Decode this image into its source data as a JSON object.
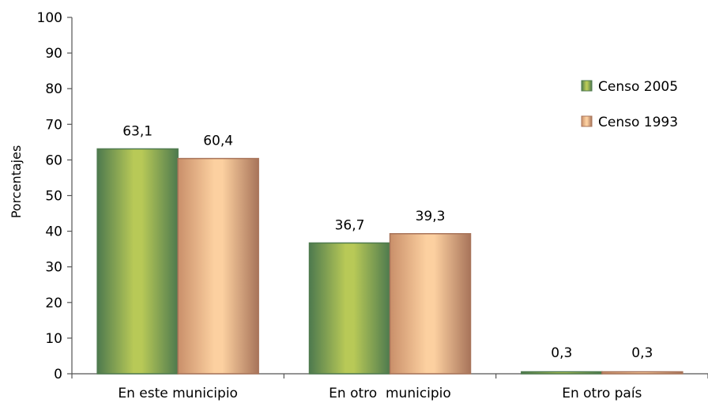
{
  "chart_data": {
    "type": "bar",
    "categories": [
      "En este municipio",
      "En otro  municipio",
      "En otro país"
    ],
    "series": [
      {
        "name": "Censo 2005",
        "values": [
          63.1,
          36.7,
          0.3
        ],
        "labels": [
          "63,1",
          "36,7",
          "0,3"
        ]
      },
      {
        "name": "Censo 1993",
        "values": [
          60.4,
          39.3,
          0.3
        ],
        "labels": [
          "60,4",
          "39,3",
          "0,3"
        ]
      }
    ],
    "title": "",
    "xlabel": "",
    "ylabel": "Porcentajes",
    "ylim": [
      0,
      100
    ],
    "yticks": [
      "0",
      "10",
      "20",
      "30",
      "40",
      "50",
      "60",
      "70",
      "80",
      "90",
      "100"
    ],
    "grid": false,
    "legend_position": "right"
  },
  "colors": {
    "censo_2005": {
      "dark": "#4e7a4e",
      "light": "#b8c957"
    },
    "censo_1993": {
      "dark": "#a8745a",
      "light": "#fcd0a0"
    },
    "axis": "#555555"
  }
}
